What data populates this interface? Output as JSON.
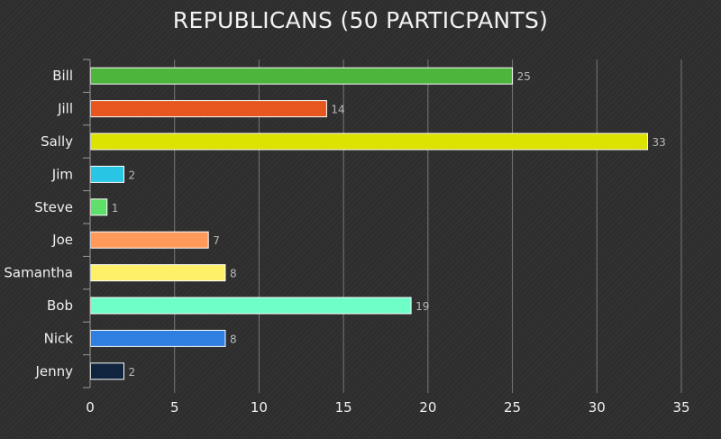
{
  "chart_data": {
    "type": "bar",
    "orientation": "horizontal",
    "title": "REPUBLICANS (50 PARTICPANTS)",
    "xlabel": "",
    "ylabel": "",
    "categories": [
      "Bill",
      "Jill",
      "Sally",
      "Jim",
      "Steve",
      "Joe",
      "Samantha",
      "Bob",
      "Nick",
      "Jenny"
    ],
    "values": [
      25,
      14,
      33,
      2,
      1,
      7,
      8,
      19,
      8,
      2
    ],
    "colors": [
      "#4db53b",
      "#e8561f",
      "#dce300",
      "#28c6e4",
      "#5fe06a",
      "#ff9a5a",
      "#fff06a",
      "#6effc8",
      "#2f7fe0",
      "#10233f"
    ],
    "xlim": [
      0,
      35
    ],
    "xticks": [
      0,
      5,
      10,
      15,
      20,
      25,
      30,
      35
    ],
    "grid": true,
    "legend": "none"
  },
  "style": {
    "gridline_color": "#777777",
    "axis_color": "#9a9a9a",
    "bar_outline": "#ffffff"
  }
}
